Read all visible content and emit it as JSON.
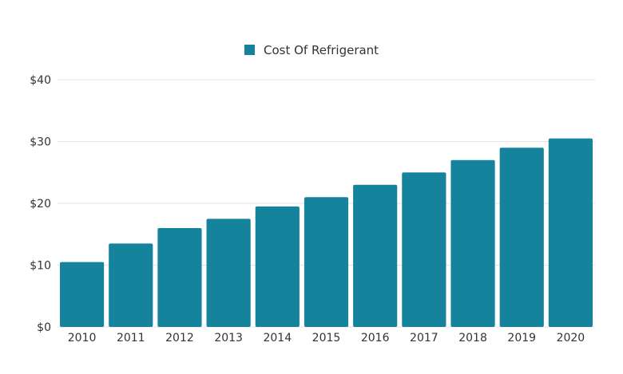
{
  "chart_data": {
    "type": "bar",
    "title": "",
    "xlabel": "",
    "ylabel": "",
    "categories": [
      "2010",
      "2011",
      "2012",
      "2013",
      "2014",
      "2015",
      "2016",
      "2017",
      "2018",
      "2019",
      "2020"
    ],
    "series": [
      {
        "name": "Cost Of Refrigerant",
        "values": [
          10.5,
          13.5,
          16,
          17.5,
          19.5,
          21,
          23,
          25,
          27,
          29,
          30.5
        ]
      }
    ],
    "ylim": [
      0,
      40
    ],
    "yticks": [
      0,
      10,
      20,
      30,
      40
    ],
    "ytick_labels": [
      "$0",
      "$10",
      "$20",
      "$30",
      "$40"
    ],
    "grid": true,
    "legend_position": "top-center",
    "colors": {
      "bar": "#16839c",
      "grid": "#e3e3e3",
      "text": "#333333"
    }
  }
}
